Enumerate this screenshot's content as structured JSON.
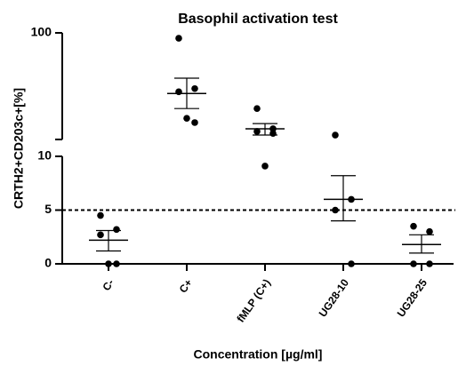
{
  "chart_data": {
    "type": "dot",
    "title": "Basophil activation test",
    "y_label": "CRTH2+CD203c+[%]",
    "x_label": "Concentration [µg/ml]",
    "categories": [
      "C-",
      "C+",
      "fMLP (C+)",
      "UG28-10",
      "UG28-25"
    ],
    "points": [
      [
        4.5,
        3.2,
        2.7,
        0,
        0
      ],
      [
        89,
        30,
        28,
        14.4,
        15.8
      ],
      [
        19.5,
        12.6,
        11.9,
        11.4,
        9.1
      ],
      [
        11,
        6,
        5,
        0
      ],
      [
        3.5,
        3,
        0,
        0
      ]
    ],
    "means": [
      2.2,
      27,
      12.6,
      6,
      1.8
    ],
    "sem_lower": [
      1.2,
      19.5,
      11,
      4,
      1
    ],
    "sem_upper": [
      3.1,
      37.6,
      14.1,
      8.2,
      2.7
    ],
    "segments": [
      {
        "ylim": [
          0,
          10
        ],
        "scale": "linear"
      },
      {
        "ylim": [
          10,
          100
        ],
        "scale": "log"
      }
    ],
    "yticks": [
      0,
      5,
      10,
      100
    ],
    "reference_line": 5,
    "color": "#000000"
  }
}
